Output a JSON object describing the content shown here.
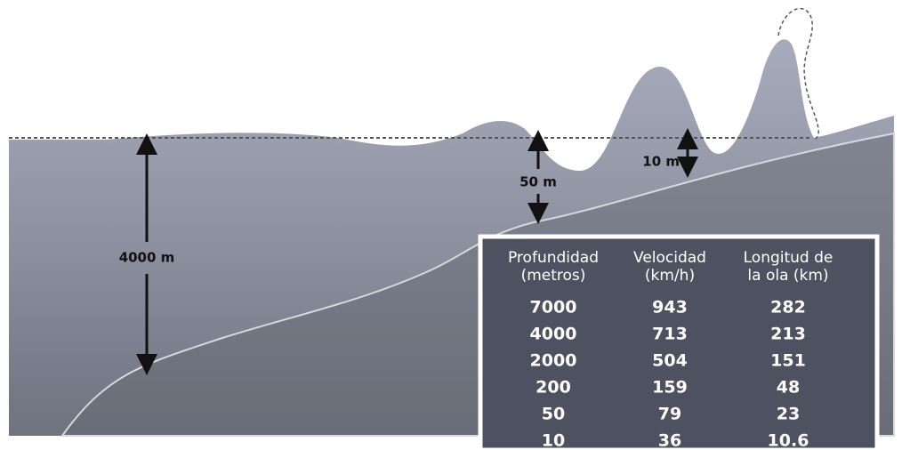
{
  "labels": {
    "deep": "4000 m",
    "mid": "50 m",
    "shallow": "10 m"
  },
  "table": {
    "header": [
      [
        "Profundidad",
        "(metros)"
      ],
      [
        "Velocidad",
        "(km/h)"
      ],
      [
        "Longitud de",
        "la ola (km)"
      ]
    ],
    "rows": [
      [
        "7000",
        "943",
        "282"
      ],
      [
        "4000",
        "713",
        "213"
      ],
      [
        "2000",
        "504",
        "151"
      ],
      [
        "200",
        "159",
        "48"
      ],
      [
        "50",
        "79",
        "23"
      ],
      [
        "10",
        "36",
        "10.6"
      ]
    ]
  }
}
